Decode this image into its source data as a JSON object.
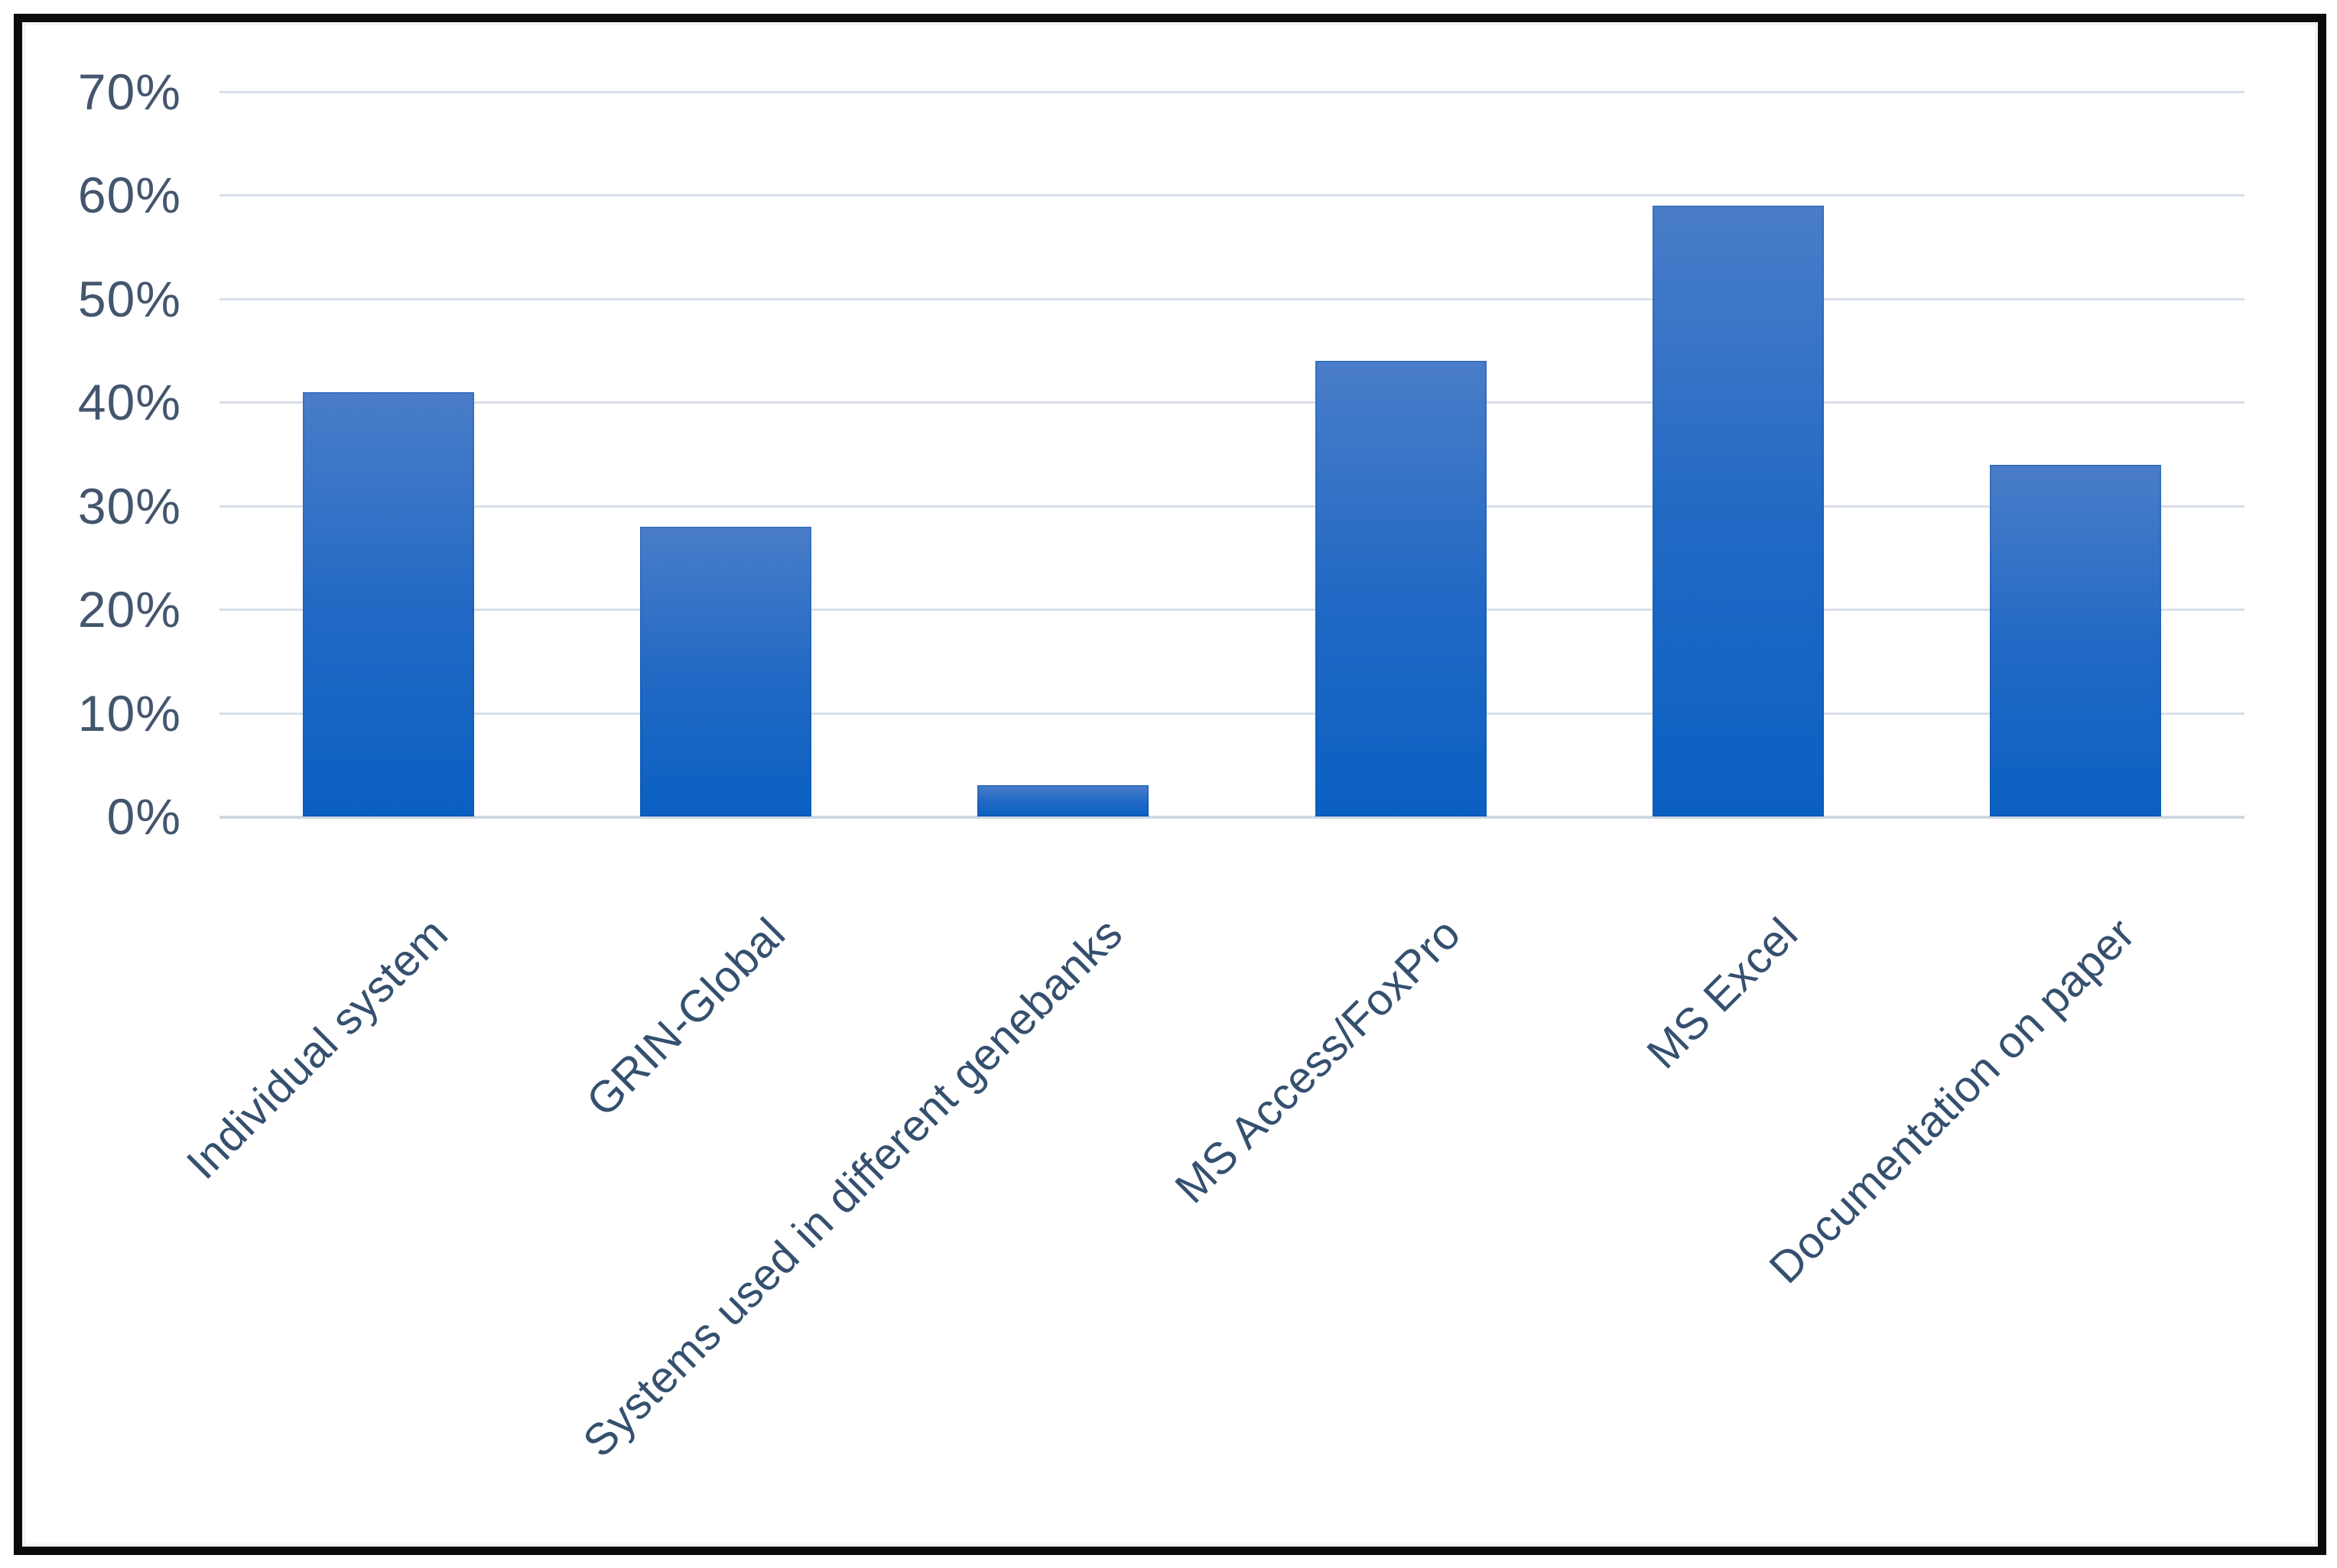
{
  "chart_data": {
    "type": "bar",
    "title": "",
    "xlabel": "",
    "ylabel": "",
    "categories": [
      "Individual system",
      "GRIN-Global",
      "Systems used in different genebanks",
      "MS Access/FoxPro",
      "MS Excel",
      "Documentation on paper"
    ],
    "values": [
      41,
      28,
      3,
      44,
      59,
      34
    ],
    "unit": "%",
    "ylim": [
      0,
      70
    ],
    "ytick_step": 10,
    "yticks": [
      "70%",
      "60%",
      "50%",
      "40%",
      "30%",
      "20%",
      "10%",
      "0%"
    ],
    "grid": true,
    "legend": false,
    "category_label_rotation_deg": -45,
    "colors": {
      "bar_top": "#4a7dc9",
      "bar_mid": "#2169c4",
      "bar_bottom": "#0a60c2",
      "gridline": "#d9dfe9",
      "axis_line": "#cfd7e3",
      "y_tick_label": "#44566e",
      "category_label": "#35506f",
      "frame_border": "#0b0b0b",
      "background": "#ffffff"
    }
  }
}
